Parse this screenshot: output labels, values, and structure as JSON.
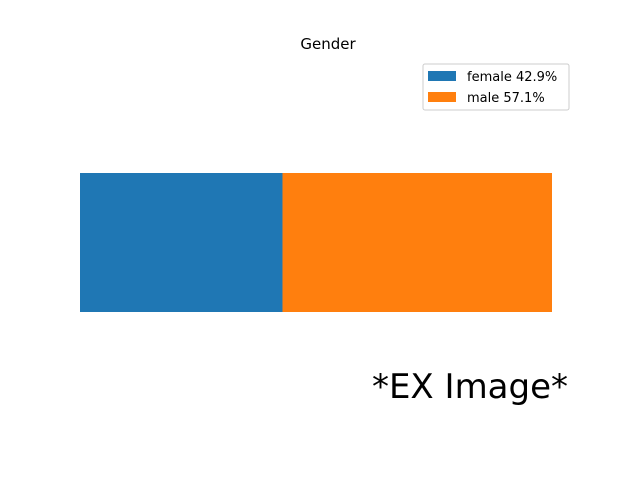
{
  "chart_data": {
    "type": "bar",
    "orientation": "horizontal-stacked",
    "title": "Gender",
    "xlabel": "",
    "ylabel": "",
    "grid": false,
    "axes_visible": false,
    "legend_position": "top-right",
    "series": [
      {
        "name": "female",
        "value": 42.9,
        "label": "female 42.9%",
        "color": "#1f77b4"
      },
      {
        "name": "male",
        "value": 57.1,
        "label": "male 57.1%",
        "color": "#ff7f0e"
      }
    ],
    "total": 100
  },
  "watermark": "*EX Image*"
}
